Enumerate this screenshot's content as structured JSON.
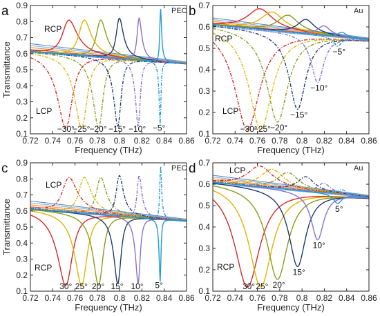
{
  "chart_data": [
    {
      "type": "line",
      "panel_label": "a",
      "material": "PEC",
      "xlabel": "Frequency (THz)",
      "ylabel": "Transmittance",
      "xlim": [
        0.72,
        0.86
      ],
      "ylim": [
        0.1,
        0.9
      ],
      "xticks": [
        "0.72",
        "0.74",
        "0.76",
        "0.78",
        "0.8",
        "0.82",
        "0.84",
        "0.86"
      ],
      "yticks": [
        "0.1",
        "0.2",
        "0.3",
        "0.4",
        "0.5",
        "0.6",
        "0.7",
        "0.8",
        "0.9"
      ],
      "peak_polarization": "RCP",
      "dip_polarization": "LCP",
      "peak_style": "solid",
      "dip_style": "dashdot",
      "angle_labels": [
        "−30°",
        "−25°",
        "−20°",
        "−15°",
        "−10°",
        "−5°"
      ],
      "series": [
        {
          "angle": "30",
          "f0": 0.753,
          "w": 0.0082,
          "peak": 0.8,
          "dip": 0.15
        },
        {
          "angle": "25",
          "f0": 0.767,
          "w": 0.0068,
          "peak": 0.8,
          "dip": 0.15
        },
        {
          "angle": "20",
          "f0": 0.782,
          "w": 0.0055,
          "peak": 0.8,
          "dip": 0.15
        },
        {
          "angle": "15",
          "f0": 0.799,
          "w": 0.004,
          "peak": 0.81,
          "dip": 0.16
        },
        {
          "angle": "10",
          "f0": 0.817,
          "w": 0.0026,
          "peak": 0.81,
          "dip": 0.16
        },
        {
          "angle": "5",
          "f0": 0.8365,
          "w": 0.001,
          "peak": 0.87,
          "dip": 0.17
        }
      ]
    },
    {
      "type": "line",
      "panel_label": "b",
      "material": "Au",
      "xlabel": "Frequency (THz)",
      "ylabel": "",
      "xlim": [
        0.72,
        0.86
      ],
      "ylim": [
        0.1,
        0.7
      ],
      "xticks": [
        "0.72",
        "0.74",
        "0.76",
        "0.78",
        "0.8",
        "0.82",
        "0.84",
        "0.86"
      ],
      "yticks": [
        "0.1",
        "0.2",
        "0.3",
        "0.4",
        "0.5",
        "0.6",
        "0.7"
      ],
      "peak_polarization": "RCP",
      "dip_polarization": "LCP",
      "peak_style": "solid",
      "dip_style": "dashdot",
      "angle_labels": [
        "−30°",
        "−25°",
        "−20°",
        "−15°",
        "−10°",
        "−5°"
      ],
      "series": [
        {
          "angle": "30",
          "f0": 0.751,
          "w": 0.012,
          "peak": 0.685,
          "dip": 0.12
        },
        {
          "angle": "25",
          "f0": 0.763,
          "w": 0.011,
          "peak": 0.67,
          "dip": 0.12
        },
        {
          "angle": "20",
          "f0": 0.778,
          "w": 0.01,
          "peak": 0.655,
          "dip": 0.155
        },
        {
          "angle": "15",
          "f0": 0.796,
          "w": 0.008,
          "peak": 0.635,
          "dip": 0.215
        },
        {
          "angle": "10",
          "f0": 0.814,
          "w": 0.006,
          "peak": 0.605,
          "dip": 0.34
        },
        {
          "angle": "5",
          "f0": 0.832,
          "w": 0.004,
          "peak": 0.575,
          "dip": 0.51
        }
      ]
    },
    {
      "type": "line",
      "panel_label": "c",
      "material": "PEC",
      "xlabel": "Frequency (THz)",
      "ylabel": "Transmittance",
      "xlim": [
        0.72,
        0.86
      ],
      "ylim": [
        0.1,
        0.9
      ],
      "xticks": [
        "0.72",
        "0.74",
        "0.76",
        "0.78",
        "0.8",
        "0.82",
        "0.84",
        "0.86"
      ],
      "yticks": [
        "0.1",
        "0.2",
        "0.3",
        "0.4",
        "0.5",
        "0.6",
        "0.7",
        "0.8",
        "0.9"
      ],
      "peak_polarization": "LCP",
      "dip_polarization": "RCP",
      "peak_style": "dashdot",
      "dip_style": "solid",
      "angle_labels": [
        "30°",
        "25°",
        "20°",
        "15°",
        "10°",
        "5°"
      ],
      "series": [
        {
          "angle": "30",
          "f0": 0.753,
          "w": 0.0082,
          "peak": 0.8,
          "dip": 0.15
        },
        {
          "angle": "25",
          "f0": 0.767,
          "w": 0.0068,
          "peak": 0.8,
          "dip": 0.15
        },
        {
          "angle": "20",
          "f0": 0.782,
          "w": 0.0055,
          "peak": 0.8,
          "dip": 0.15
        },
        {
          "angle": "15",
          "f0": 0.799,
          "w": 0.004,
          "peak": 0.81,
          "dip": 0.16
        },
        {
          "angle": "10",
          "f0": 0.817,
          "w": 0.0026,
          "peak": 0.81,
          "dip": 0.16
        },
        {
          "angle": "5",
          "f0": 0.8365,
          "w": 0.001,
          "peak": 0.87,
          "dip": 0.17
        }
      ]
    },
    {
      "type": "line",
      "panel_label": "d",
      "material": "Au",
      "xlabel": "Frequency (THz)",
      "ylabel": "",
      "xlim": [
        0.72,
        0.86
      ],
      "ylim": [
        0.1,
        0.7
      ],
      "xticks": [
        "0.72",
        "0.74",
        "0.76",
        "0.78",
        "0.8",
        "0.82",
        "0.84",
        "0.86"
      ],
      "yticks": [
        "0.1",
        "0.2",
        "0.3",
        "0.4",
        "0.5",
        "0.6",
        "0.7"
      ],
      "peak_polarization": "LCP",
      "dip_polarization": "RCP",
      "peak_style": "dashdot",
      "dip_style": "solid",
      "angle_labels": [
        "30°",
        "25°",
        "20°",
        "15°",
        "10°",
        "5°"
      ],
      "series": [
        {
          "angle": "30",
          "f0": 0.751,
          "w": 0.012,
          "peak": 0.685,
          "dip": 0.12
        },
        {
          "angle": "25",
          "f0": 0.763,
          "w": 0.011,
          "peak": 0.67,
          "dip": 0.12
        },
        {
          "angle": "20",
          "f0": 0.778,
          "w": 0.01,
          "peak": 0.655,
          "dip": 0.155
        },
        {
          "angle": "15",
          "f0": 0.796,
          "w": 0.008,
          "peak": 0.635,
          "dip": 0.215
        },
        {
          "angle": "10",
          "f0": 0.814,
          "w": 0.006,
          "peak": 0.605,
          "dip": 0.34
        },
        {
          "angle": "5",
          "f0": 0.832,
          "w": 0.004,
          "peak": 0.575,
          "dip": 0.51
        }
      ]
    }
  ],
  "series_colors": [
    "#d62728",
    "#e0b400",
    "#8a9a1a",
    "#1f3a6e",
    "#8b6fd0",
    "#1f9ad6"
  ],
  "background_colors": [
    "#4a7fc0",
    "#7aa9e0",
    "#ff7f0e",
    "#c8502a"
  ],
  "grid": false
}
